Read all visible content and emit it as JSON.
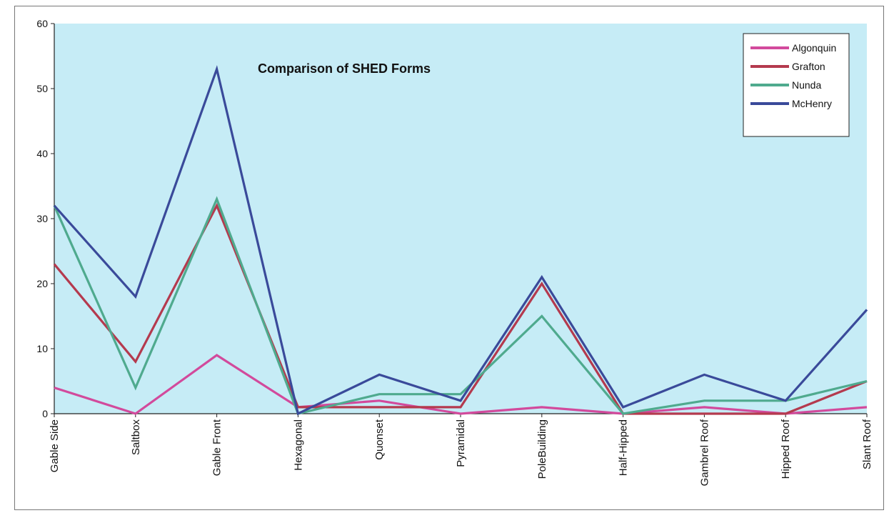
{
  "chart_data": {
    "type": "line",
    "title": "Comparison of SHED Forms",
    "xlabel": "",
    "ylabel": "",
    "ylim": [
      0,
      60
    ],
    "yticks": [
      0,
      10,
      20,
      30,
      40,
      50,
      60
    ],
    "grid": false,
    "legend_position": "top-right",
    "background_color": "#c6ecf6",
    "categories": [
      "Gable Side",
      "Saltbox",
      "Gable Front",
      "Hexagonal",
      "Quonset",
      "Pyramidal",
      "PoleBuilding",
      "Half-Hipped",
      "Gambrel Roof",
      "Hipped Roof",
      "Slant Roof"
    ],
    "series": [
      {
        "name": "Algonquin",
        "color": "#d24a9c",
        "values": [
          4,
          0,
          9,
          1,
          2,
          0,
          1,
          0,
          1,
          0,
          1
        ]
      },
      {
        "name": "Grafton",
        "color": "#b43a4e",
        "values": [
          23,
          8,
          32,
          1,
          1,
          1,
          20,
          0,
          0,
          0,
          5
        ]
      },
      {
        "name": "Nunda",
        "color": "#4faa8e",
        "values": [
          32,
          4,
          33,
          0,
          3,
          3,
          15,
          0,
          2,
          2,
          5
        ]
      },
      {
        "name": "McHenry",
        "color": "#3a4a9a",
        "values": [
          32,
          18,
          53,
          0,
          6,
          2,
          21,
          1,
          6,
          2,
          16
        ]
      }
    ]
  }
}
